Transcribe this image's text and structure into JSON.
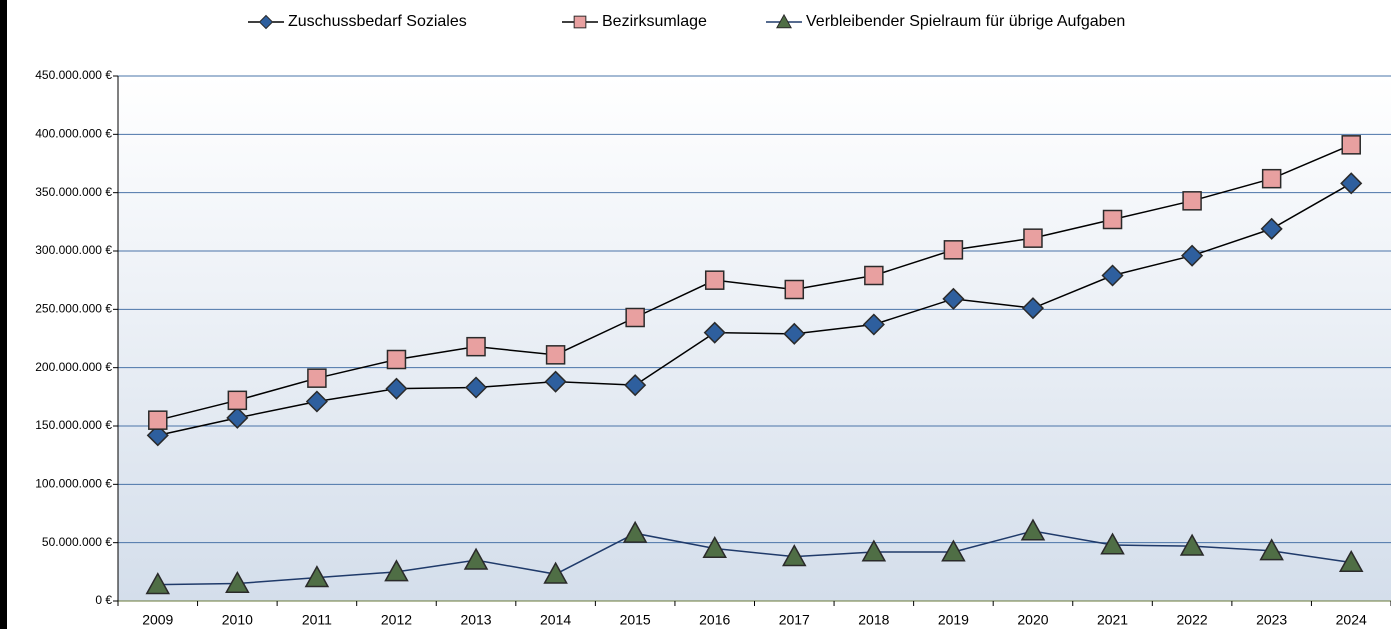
{
  "chart_data": {
    "type": "line",
    "categories": [
      "2009",
      "2010",
      "2011",
      "2012",
      "2013",
      "2014",
      "2015",
      "2016",
      "2017",
      "2018",
      "2019",
      "2020",
      "2021",
      "2022",
      "2023",
      "2024"
    ],
    "series": [
      {
        "name": "Zuschussbedarf Soziales",
        "color": "#2e5f9e",
        "line_color": "#000000",
        "marker": "diamond",
        "values": [
          142,
          157,
          171,
          182,
          183,
          188,
          185,
          230,
          229,
          237,
          259,
          251,
          279,
          296,
          319,
          358
        ]
      },
      {
        "name": "Bezirksumlage",
        "color": "#e8a0a0",
        "line_color": "#000000",
        "marker": "square",
        "values": [
          155,
          172,
          191,
          207,
          218,
          211,
          243,
          275,
          267,
          279,
          301,
          311,
          327,
          343,
          362,
          391
        ]
      },
      {
        "name": "Verbleibender Spielraum für übrige Aufgaben",
        "color": "#4f6e45",
        "line_color": "#1f3a6a",
        "marker": "triangle",
        "values": [
          14,
          15,
          20,
          25,
          35,
          23,
          58,
          45,
          38,
          42,
          42,
          60,
          48,
          47,
          43,
          33
        ]
      }
    ],
    "ylim": [
      0,
      450
    ],
    "yticks": [
      {
        "value": 0,
        "label": "0 €"
      },
      {
        "value": 50,
        "label": "50.000.000 €"
      },
      {
        "value": 100,
        "label": "100.000.000 €"
      },
      {
        "value": 150,
        "label": "150.000.000 €"
      },
      {
        "value": 200,
        "label": "200.000.000 €"
      },
      {
        "value": 250,
        "label": "250.000.000 €"
      },
      {
        "value": 300,
        "label": "300.000.000 €"
      },
      {
        "value": 350,
        "label": "350.000.000 €"
      },
      {
        "value": 400,
        "label": "400.000.000 €"
      },
      {
        "value": 450,
        "label": "450.000.000 €"
      }
    ],
    "grid": true,
    "legend": "top"
  }
}
